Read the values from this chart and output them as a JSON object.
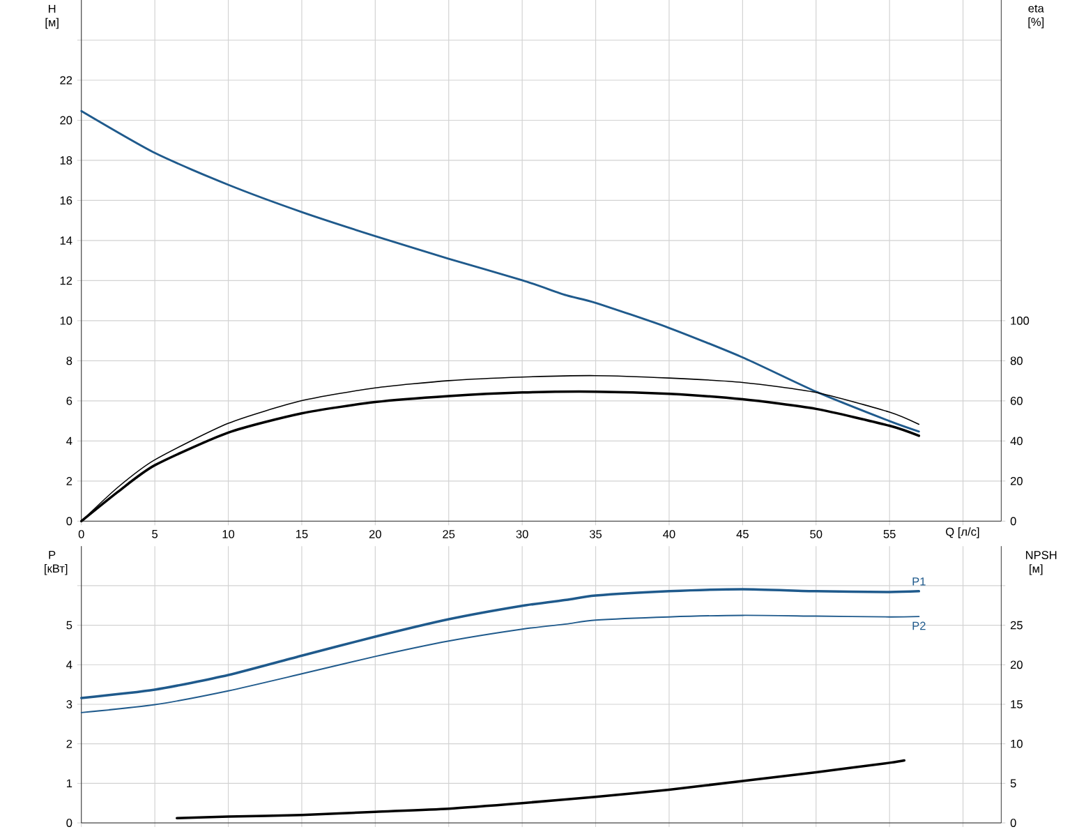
{
  "chart_data": [
    {
      "type": "line",
      "xlabel": "Q [л/с]",
      "ylabel": "H [м]",
      "y2label": "eta [%]",
      "xlim": [
        0,
        62.6
      ],
      "xticks": [
        0,
        5,
        10,
        15,
        20,
        25,
        30,
        35,
        40,
        45,
        50,
        55,
        {
          "value": 60,
          "label": null
        }
      ],
      "ylim": [
        0,
        26
      ],
      "yticks": [
        0,
        2,
        4,
        6,
        8,
        10,
        12,
        14,
        16,
        18,
        20,
        22,
        {
          "value": 24,
          "label": null
        }
      ],
      "y2lim": [
        0,
        260
      ],
      "y2ticks": [
        0,
        20,
        40,
        60,
        80,
        100
      ],
      "grid": true,
      "marker": "none",
      "series": [
        {
          "color": "#1f5a8c",
          "x": [
            0,
            5,
            10,
            15,
            20,
            25,
            30,
            33,
            35,
            40,
            45,
            50,
            55,
            57
          ],
          "values": [
            20.46,
            18.37,
            16.78,
            15.42,
            14.22,
            13.09,
            12.02,
            11.27,
            10.89,
            9.64,
            8.17,
            6.46,
            4.99,
            4.47
          ]
        },
        {
          "color": "#000000",
          "axis": "y2",
          "x": [
            0,
            2.5,
            5,
            10,
            15,
            20,
            25,
            30,
            35,
            40,
            45,
            50,
            55,
            57
          ],
          "values": [
            0,
            17,
            30.6,
            48.8,
            60.1,
            66.5,
            70.1,
            71.9,
            72.6,
            71.4,
            69.2,
            64.2,
            54.4,
            48.3
          ]
        },
        {
          "color": "#000000",
          "axis": "y2",
          "x": [
            0,
            2.5,
            5,
            10,
            15,
            20,
            25,
            30,
            35,
            40,
            45,
            50,
            55,
            57
          ],
          "values": [
            0,
            14.7,
            27.9,
            44.2,
            53.8,
            59.4,
            62.4,
            64.2,
            64.6,
            63.5,
            60.8,
            56.0,
            47.6,
            42.6
          ]
        }
      ]
    },
    {
      "type": "line",
      "ylabel": "P [кВт]",
      "y2label": "NPSH [м]",
      "xlim": [
        0,
        62.6
      ],
      "xticks": [
        0,
        5,
        10,
        15,
        20,
        25,
        30,
        35,
        40,
        45,
        50,
        55,
        60
      ],
      "ylim": [
        0,
        7
      ],
      "yticks": [
        0,
        1,
        2,
        3,
        4,
        5,
        {
          "value": 6,
          "label": null
        }
      ],
      "y2lim": [
        0,
        35
      ],
      "y2ticks": [
        0,
        5,
        10,
        15,
        20,
        25,
        {
          "value": 30,
          "label": null
        }
      ],
      "tick_labels": "y",
      "grid": true,
      "marker": "none",
      "series": [
        {
          "name": "P1",
          "color": "#1f5a8c",
          "x": [
            0,
            5,
            10,
            15,
            20,
            25,
            30,
            33,
            35,
            40,
            45,
            50,
            55,
            57
          ],
          "values": [
            3.16,
            3.37,
            3.74,
            4.23,
            4.71,
            5.15,
            5.49,
            5.64,
            5.75,
            5.86,
            5.91,
            5.86,
            5.84,
            5.86
          ]
        },
        {
          "name": "P2",
          "color": "#1f5a8c",
          "x": [
            0,
            5,
            10,
            15,
            20,
            25,
            30,
            33,
            35,
            40,
            45,
            50,
            55,
            57
          ],
          "values": [
            2.79,
            2.99,
            3.34,
            3.77,
            4.21,
            4.6,
            4.9,
            5.03,
            5.13,
            5.21,
            5.25,
            5.23,
            5.21,
            5.22
          ]
        },
        {
          "color": "#000000",
          "axis": "y2",
          "x": [
            6.5,
            10,
            15,
            20,
            25,
            30,
            35,
            40,
            45,
            50,
            55,
            56
          ],
          "values": [
            0.6,
            0.8,
            1.0,
            1.4,
            1.8,
            2.5,
            3.3,
            4.2,
            5.3,
            6.4,
            7.6,
            7.9
          ]
        }
      ]
    }
  ]
}
